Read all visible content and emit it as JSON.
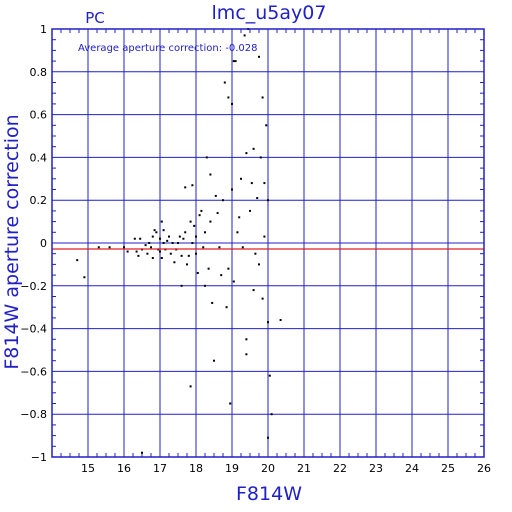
{
  "chart_data": {
    "type": "scatter",
    "title": "lmc_u5ay07",
    "corner_label": "PC",
    "xlabel": "F814W",
    "ylabel": "F814W aperture correction",
    "annotation": "Average aperture correction: -0.028",
    "average_correction": -0.028,
    "xlim": [
      14,
      26
    ],
    "ylim": [
      -1,
      1
    ],
    "x_ticks": [
      15,
      16,
      17,
      18,
      19,
      20,
      21,
      22,
      23,
      24,
      25,
      26
    ],
    "y_ticks": [
      -1,
      -0.8,
      -0.6,
      -0.4,
      -0.2,
      0,
      0.2,
      0.4,
      0.6,
      0.8,
      1
    ],
    "x_tick_labels": [
      "15",
      "16",
      "17",
      "18",
      "19",
      "20",
      "21",
      "22",
      "23",
      "24",
      "25",
      "26"
    ],
    "y_tick_labels": [
      "−1",
      "−0.8",
      "−0.6",
      "−0.4",
      "−0.2",
      "0",
      "0.2",
      "0.4",
      "0.6",
      "0.8",
      "1"
    ],
    "grid": true,
    "colors": {
      "axes": "#2020c8",
      "grid": "#2020c8",
      "reference_line": "#e02020",
      "points": "#000000"
    },
    "points": [
      [
        14.7,
        -0.08
      ],
      [
        14.9,
        -0.16
      ],
      [
        15.3,
        -0.02
      ],
      [
        15.6,
        -0.02
      ],
      [
        16.0,
        -0.02
      ],
      [
        16.1,
        -0.04
      ],
      [
        16.3,
        0.02
      ],
      [
        16.35,
        -0.04
      ],
      [
        16.4,
        -0.06
      ],
      [
        16.45,
        0.02
      ],
      [
        16.5,
        -0.03
      ],
      [
        16.6,
        -0.01
      ],
      [
        16.65,
        -0.05
      ],
      [
        16.7,
        0.0
      ],
      [
        16.75,
        -0.02
      ],
      [
        16.8,
        0.03
      ],
      [
        16.8,
        -0.07
      ],
      [
        16.85,
        0.06
      ],
      [
        16.9,
        0.05
      ],
      [
        16.95,
        -0.03
      ],
      [
        17.0,
        0.02
      ],
      [
        17.0,
        -0.04
      ],
      [
        17.05,
        0.1
      ],
      [
        17.05,
        -0.07
      ],
      [
        17.1,
        0.06
      ],
      [
        17.1,
        0.0
      ],
      [
        17.15,
        -0.03
      ],
      [
        17.2,
        0.01
      ],
      [
        17.25,
        0.03
      ],
      [
        17.3,
        -0.05
      ],
      [
        17.35,
        0.0
      ],
      [
        17.4,
        -0.09
      ],
      [
        17.45,
        -0.03
      ],
      [
        17.5,
        0.0
      ],
      [
        17.55,
        0.03
      ],
      [
        17.6,
        -0.06
      ],
      [
        17.6,
        -0.2
      ],
      [
        17.65,
        0.02
      ],
      [
        17.7,
        0.26
      ],
      [
        17.7,
        0.05
      ],
      [
        17.75,
        -0.1
      ],
      [
        17.8,
        -0.06
      ],
      [
        17.85,
        0.1
      ],
      [
        17.85,
        -0.67
      ],
      [
        17.9,
        0.0
      ],
      [
        17.9,
        0.27
      ],
      [
        17.95,
        0.08
      ],
      [
        18.0,
        0.03
      ],
      [
        18.0,
        -0.05
      ],
      [
        18.05,
        -0.14
      ],
      [
        18.1,
        0.13
      ],
      [
        18.15,
        0.15
      ],
      [
        18.2,
        -0.02
      ],
      [
        18.25,
        0.05
      ],
      [
        18.25,
        -0.2
      ],
      [
        18.3,
        0.4
      ],
      [
        18.35,
        -0.12
      ],
      [
        18.4,
        0.32
      ],
      [
        18.4,
        0.1
      ],
      [
        18.45,
        -0.28
      ],
      [
        18.5,
        -0.55
      ],
      [
        18.55,
        0.22
      ],
      [
        18.6,
        0.14
      ],
      [
        18.65,
        -0.02
      ],
      [
        18.7,
        -0.15
      ],
      [
        18.75,
        0.2
      ],
      [
        18.8,
        0.75
      ],
      [
        18.85,
        -0.3
      ],
      [
        18.9,
        0.68
      ],
      [
        18.9,
        -0.12
      ],
      [
        18.95,
        -0.75
      ],
      [
        19.0,
        0.65
      ],
      [
        19.0,
        0.25
      ],
      [
        19.05,
        0.85
      ],
      [
        19.05,
        -0.18
      ],
      [
        19.1,
        0.85
      ],
      [
        19.15,
        0.05
      ],
      [
        19.2,
        0.12
      ],
      [
        19.25,
        0.3
      ],
      [
        19.3,
        -0.02
      ],
      [
        19.35,
        0.97
      ],
      [
        19.4,
        0.42
      ],
      [
        19.4,
        -0.45
      ],
      [
        19.45,
        1.0
      ],
      [
        19.5,
        0.15
      ],
      [
        19.55,
        0.28
      ],
      [
        19.6,
        0.44
      ],
      [
        19.6,
        -0.22
      ],
      [
        19.65,
        -0.05
      ],
      [
        19.7,
        0.21
      ],
      [
        19.75,
        0.87
      ],
      [
        19.75,
        -0.1
      ],
      [
        19.8,
        0.4
      ],
      [
        19.85,
        0.68
      ],
      [
        19.85,
        -0.26
      ],
      [
        19.9,
        0.28
      ],
      [
        19.9,
        0.03
      ],
      [
        19.95,
        0.55
      ],
      [
        20.0,
        0.2
      ],
      [
        20.0,
        -0.37
      ],
      [
        20.05,
        -0.62
      ],
      [
        20.1,
        -0.8
      ],
      [
        20.0,
        -0.91
      ],
      [
        20.35,
        -0.36
      ],
      [
        16.5,
        -0.98
      ],
      [
        19.4,
        -0.52
      ]
    ]
  }
}
